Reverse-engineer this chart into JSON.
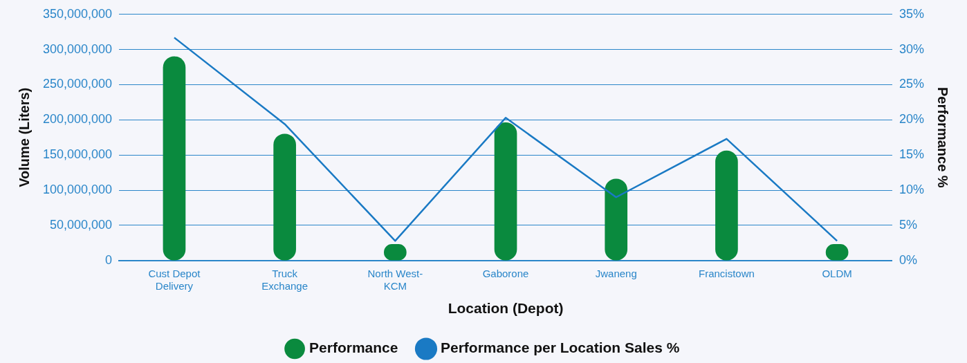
{
  "chart_data": {
    "type": "bar",
    "xlabel": "Location (Depot)",
    "ylabel": "Volume (Liters)",
    "y2label": "Performance %",
    "categories": [
      "Cust Depot Delivery",
      "Truck Exchange",
      "North West-KCM",
      "Gaborone",
      "Jwaneng",
      "Francistown",
      "OLDM"
    ],
    "series": [
      {
        "name": "Performance",
        "color": "#0a8a3e",
        "values": [
          290000000,
          180000000,
          23000000,
          196000000,
          116000000,
          156000000,
          23000000
        ]
      },
      {
        "name": "Performance per Location Sales %",
        "type": "line",
        "axis": "y2",
        "color": "#1a7ac4",
        "values": [
          31.7,
          19.4,
          2.8,
          20.3,
          9.0,
          17.3,
          2.8
        ]
      }
    ],
    "ylim": [
      0,
      350000000
    ],
    "yticks": [
      {
        "value": 0,
        "label": "0"
      },
      {
        "value": 50000000,
        "label": "50,000,000"
      },
      {
        "value": 100000000,
        "label": "100,000,000"
      },
      {
        "value": 150000000,
        "label": "150,000,000"
      },
      {
        "value": 200000000,
        "label": "200,000,000"
      },
      {
        "value": 250000000,
        "label": "250,000,000"
      },
      {
        "value": 300000000,
        "label": "300,000,000"
      },
      {
        "value": 350000000,
        "label": "350,000,000"
      }
    ],
    "y2lim": [
      0,
      35
    ],
    "y2ticks": [
      {
        "value": 0,
        "label": "0%"
      },
      {
        "value": 5,
        "label": "5%"
      },
      {
        "value": 10,
        "label": "10%"
      },
      {
        "value": 15,
        "label": "15%"
      },
      {
        "value": 20,
        "label": "20%"
      },
      {
        "value": 25,
        "label": "25%"
      },
      {
        "value": 30,
        "label": "30%"
      },
      {
        "value": 35,
        "label": "35%"
      }
    ],
    "grid": "y",
    "legend": "bottom",
    "marker": "none",
    "line_style": "solid"
  }
}
